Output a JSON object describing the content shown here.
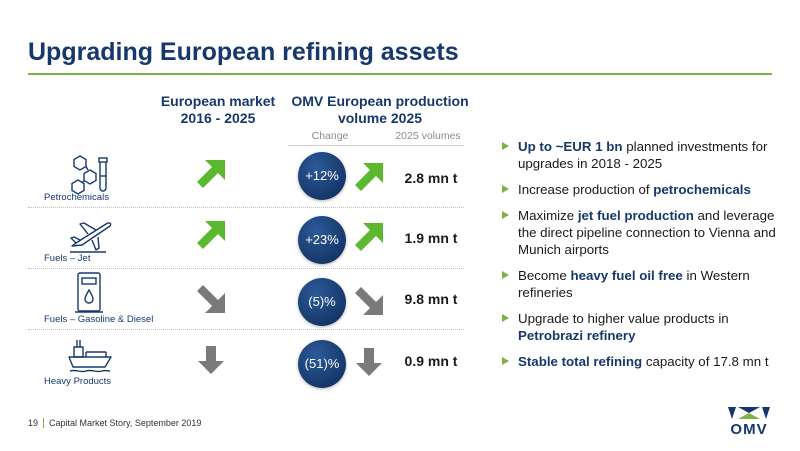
{
  "title": "Upgrading European refining assets",
  "columns": {
    "market": "European market 2016 - 2025",
    "omv": "OMV European production volume 2025",
    "change": "Change",
    "volumes": "2025 volumes"
  },
  "rows": [
    {
      "label": "Petrochemicals",
      "icon": "molecule-flask-icon",
      "market_trend": "up",
      "change": "+12%",
      "omv_trend": "up",
      "volume": "2.8 mn t"
    },
    {
      "label": "Fuels – Jet",
      "icon": "airplane-icon",
      "market_trend": "up",
      "change": "+23%",
      "omv_trend": "up",
      "volume": "1.9 mn t"
    },
    {
      "label": "Fuels – Gasoline & Diesel",
      "icon": "fuel-pump-icon",
      "market_trend": "down-right",
      "change": "(5)%",
      "omv_trend": "down-right",
      "volume": "9.8 mn t"
    },
    {
      "label": "Heavy Products",
      "icon": "tanker-ship-icon",
      "market_trend": "down",
      "change": "(51)%",
      "omv_trend": "down",
      "volume": "0.9 mn t"
    }
  ],
  "bullets": [
    {
      "hl": "Up to ~EUR 1 bn",
      "pre": "",
      "post": " planned investments for upgrades in 2018 - 2025"
    },
    {
      "pre": "Increase production of ",
      "hl": "petrochemicals",
      "post": ""
    },
    {
      "pre": "Maximize ",
      "hl": "jet fuel production",
      "post": " and leverage the direct pipeline connection to Vienna and Munich airports"
    },
    {
      "pre": "Become ",
      "hl": "heavy fuel oil free",
      "post": " in Western refineries"
    },
    {
      "pre": "Upgrade to higher value products in ",
      "hl": "Petrobrazi refinery",
      "post": ""
    },
    {
      "pre": "",
      "hl": "Stable total refining",
      "post": " capacity of 17.8 mn t"
    }
  ],
  "footer": {
    "page": "19",
    "text": "Capital Market Story, September 2019"
  },
  "logo": {
    "text": "OMV"
  },
  "colors": {
    "navy": "#16386b",
    "green": "#7cb342",
    "arrow_up": "#5cb82e",
    "arrow_down": "#7a7a7a"
  }
}
